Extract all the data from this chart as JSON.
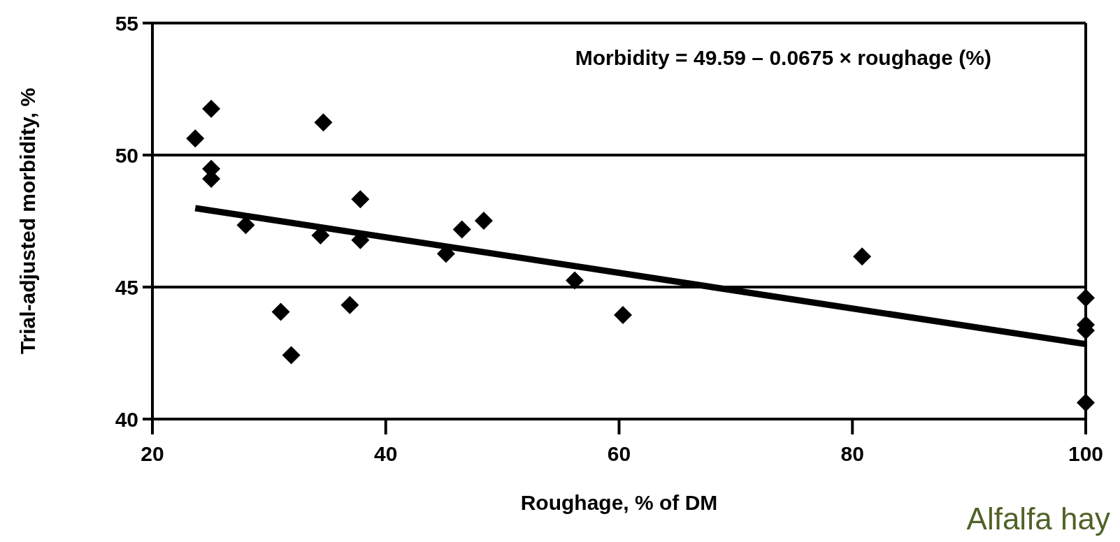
{
  "chart_data": {
    "type": "scatter",
    "xlabel": "Roughage, % of DM",
    "ylabel": "Trial-adjusted morbidity, %",
    "annotations": [
      "Morbidity = 49.59 – 0.0675 × roughage (%)",
      "Alfalfa hay"
    ],
    "xlim": [
      20,
      100
    ],
    "xticks": [
      20,
      40,
      60,
      80,
      100
    ],
    "ylim": [
      40,
      55
    ],
    "yticks": [
      40,
      45,
      50,
      55
    ],
    "grid": "y",
    "series": [
      {
        "marker": "diamond",
        "color": "#000000",
        "x": [
          23.67,
          25.04,
          25.04,
          25.04,
          28.0,
          31.0,
          31.9,
          34.41,
          34.65,
          36.92,
          37.82,
          37.82,
          45.16,
          46.53,
          48.4,
          56.2,
          60.33,
          80.83,
          100,
          100,
          100,
          100
        ],
        "values": [
          50.63,
          51.75,
          49.48,
          49.1,
          47.35,
          44.06,
          42.42,
          46.96,
          51.24,
          44.32,
          48.33,
          46.78,
          46.26,
          47.18,
          47.51,
          45.25,
          43.94,
          46.16,
          44.59,
          43.57,
          43.35,
          40.62
        ]
      },
      {
        "type": "line",
        "color": "#000000",
        "line_style": "solid",
        "x": [
          23.67,
          100
        ],
        "values": [
          47.99,
          42.84
        ]
      }
    ]
  }
}
